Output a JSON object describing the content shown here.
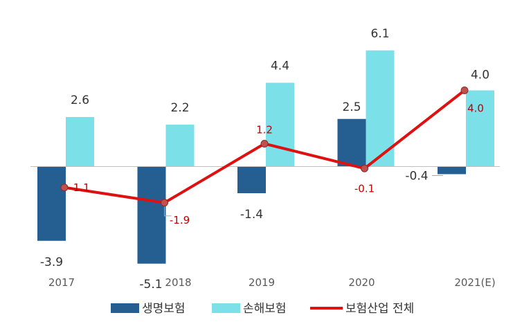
{
  "chart_data": {
    "type": "bar",
    "categories": [
      "2017",
      "2018",
      "2019",
      "2020",
      "2021(E)"
    ],
    "series": [
      {
        "name": "생명보험",
        "type": "bar",
        "color": "#255e91",
        "values": [
          -3.9,
          -5.1,
          -1.4,
          2.5,
          -0.4
        ],
        "labels": [
          "-3.9",
          "-5.1",
          "-1.4",
          "2.5",
          "-0.4"
        ]
      },
      {
        "name": "손해보험",
        "type": "bar",
        "color": "#7be0e8",
        "values": [
          2.6,
          2.2,
          4.4,
          6.1,
          4.0
        ],
        "labels": [
          "2.6",
          "2.2",
          "4.4",
          "6.1",
          "4.0"
        ]
      },
      {
        "name": "보험산업 전체",
        "type": "line",
        "color": "#dd1111",
        "values": [
          -1.1,
          -1.9,
          1.2,
          -0.1,
          4.0
        ],
        "labels": [
          "-1.1",
          "-1.9",
          "1.2",
          "-0.1",
          "4.0"
        ]
      }
    ],
    "ylim": [
      -5.1,
      6.1
    ],
    "grid": false,
    "legend": "bottom"
  }
}
